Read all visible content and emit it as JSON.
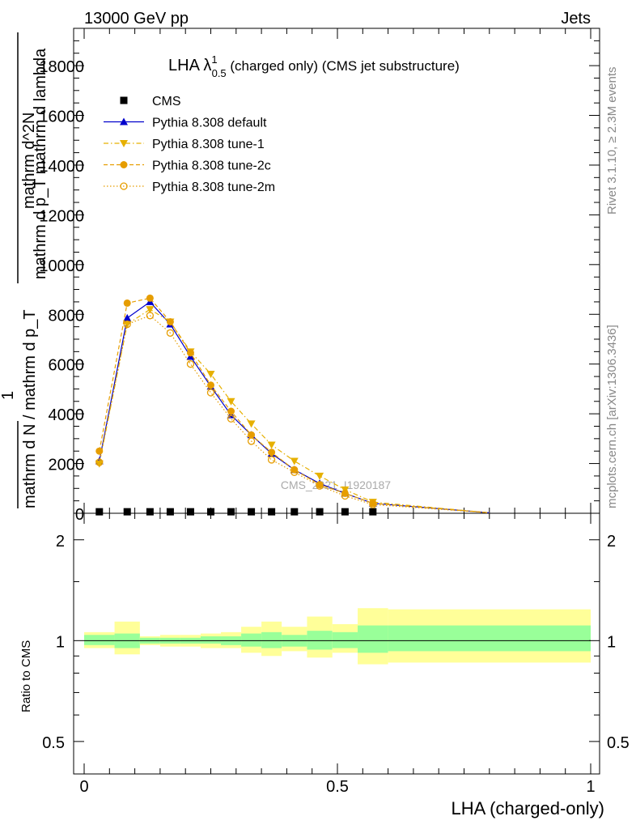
{
  "header": {
    "left": "13000 GeV pp",
    "right": "Jets"
  },
  "title": {
    "main": "LHA λ",
    "sup": "1",
    "sub": "0.5",
    "rest": " (charged only) (CMS jet substructure)"
  },
  "side_labels": {
    "rivet": "Rivet 3.1.10, ≥ 2.3M events",
    "mcplots": "mcplots.cern.ch [arXiv:1306.3436]"
  },
  "watermark": "CMS_2021_I1920187",
  "ylabel_main": {
    "numerator_1": "mathrm d^2N",
    "numerator_2": "mathrm d p_T mathrm d lambda",
    "one": "1",
    "denominator": "mathrm d N / mathrm d p_T"
  },
  "ylabel_ratio": "Ratio to CMS",
  "xlabel": "LHA (charged-only)",
  "legend": [
    {
      "label": "CMS",
      "color": "#000000",
      "marker": "square-filled",
      "line": "none"
    },
    {
      "label": "Pythia 8.308 default",
      "color": "#0000cc",
      "marker": "triangle-up",
      "line": "solid"
    },
    {
      "label": "Pythia 8.308 tune-1",
      "color": "#e6b000",
      "marker": "triangle-down",
      "line": "dashdot"
    },
    {
      "label": "Pythia 8.308 tune-2c",
      "color": "#e69d00",
      "marker": "circle-filled",
      "line": "dashed"
    },
    {
      "label": "Pythia 8.308 tune-2m",
      "color": "#e69d00",
      "marker": "circle-open",
      "line": "dotted"
    }
  ],
  "chart_data": [
    {
      "type": "line",
      "panel": "main",
      "xlim": [
        0,
        1
      ],
      "ylim": [
        0,
        19500
      ],
      "yticks": [
        0,
        2000,
        4000,
        6000,
        8000,
        10000,
        12000,
        14000,
        16000,
        18000
      ],
      "ytick_labels": [
        "0",
        "2000",
        "4000",
        "6000",
        "8000",
        "10000",
        "12000",
        "14000",
        "16000",
        "18000"
      ],
      "x": [
        0.03,
        0.085,
        0.13,
        0.17,
        0.21,
        0.25,
        0.29,
        0.33,
        0.37,
        0.415,
        0.465,
        0.515,
        0.57,
        0.8
      ],
      "cms": [
        60,
        60,
        60,
        60,
        60,
        60,
        60,
        60,
        60,
        60,
        60,
        60,
        60,
        0
      ],
      "series": [
        {
          "name": "Pythia 8.308 default",
          "values": [
            2100,
            7850,
            8500,
            7600,
            6300,
            5100,
            3950,
            3150,
            2400,
            1750,
            1200,
            800,
            400,
            20
          ]
        },
        {
          "name": "Pythia 8.308 tune-1",
          "values": [
            2000,
            7600,
            8200,
            7700,
            6500,
            5600,
            4500,
            3600,
            2750,
            2100,
            1500,
            950,
            450,
            20
          ]
        },
        {
          "name": "Pythia 8.308 tune-2c",
          "values": [
            2500,
            8450,
            8650,
            7700,
            6450,
            5150,
            4100,
            3150,
            2450,
            1750,
            1150,
            800,
            400,
            20
          ]
        },
        {
          "name": "Pythia 8.308 tune-2m",
          "values": [
            2050,
            7600,
            7950,
            7250,
            6000,
            4850,
            3800,
            2900,
            2150,
            1650,
            1100,
            700,
            350,
            20
          ]
        }
      ]
    },
    {
      "type": "area",
      "panel": "ratio",
      "xlim": [
        0,
        1
      ],
      "ylim": [
        0.4,
        2.4
      ],
      "yscale": "log",
      "yticks": [
        0.5,
        1,
        2
      ],
      "ytick_labels": [
        "0.5",
        "1",
        "2"
      ],
      "xticks": [
        0,
        0.5,
        1
      ],
      "xtick_labels": [
        "0",
        "0.5",
        "1"
      ],
      "reference_line": 1,
      "bins": [
        0,
        0.06,
        0.11,
        0.15,
        0.19,
        0.23,
        0.27,
        0.31,
        0.35,
        0.39,
        0.44,
        0.49,
        0.54,
        0.6,
        1
      ],
      "stat_band": [
        [
          0.97,
          1.04
        ],
        [
          0.95,
          1.05
        ],
        [
          0.98,
          1.02
        ],
        [
          0.98,
          1.02
        ],
        [
          0.98,
          1.02
        ],
        [
          0.98,
          1.03
        ],
        [
          0.97,
          1.03
        ],
        [
          0.96,
          1.05
        ],
        [
          0.95,
          1.06
        ],
        [
          0.96,
          1.04
        ],
        [
          0.94,
          1.07
        ],
        [
          0.95,
          1.06
        ],
        [
          0.92,
          1.11
        ],
        [
          0.93,
          1.11
        ]
      ],
      "syst_band": [
        [
          0.95,
          1.06
        ],
        [
          0.91,
          1.14
        ],
        [
          0.97,
          1.03
        ],
        [
          0.96,
          1.04
        ],
        [
          0.96,
          1.04
        ],
        [
          0.95,
          1.05
        ],
        [
          0.95,
          1.06
        ],
        [
          0.92,
          1.1
        ],
        [
          0.9,
          1.14
        ],
        [
          0.93,
          1.1
        ],
        [
          0.89,
          1.18
        ],
        [
          0.92,
          1.12
        ],
        [
          0.85,
          1.25
        ],
        [
          0.86,
          1.24
        ]
      ],
      "stat_color": "#99ff99",
      "syst_color": "#ffff99"
    }
  ]
}
